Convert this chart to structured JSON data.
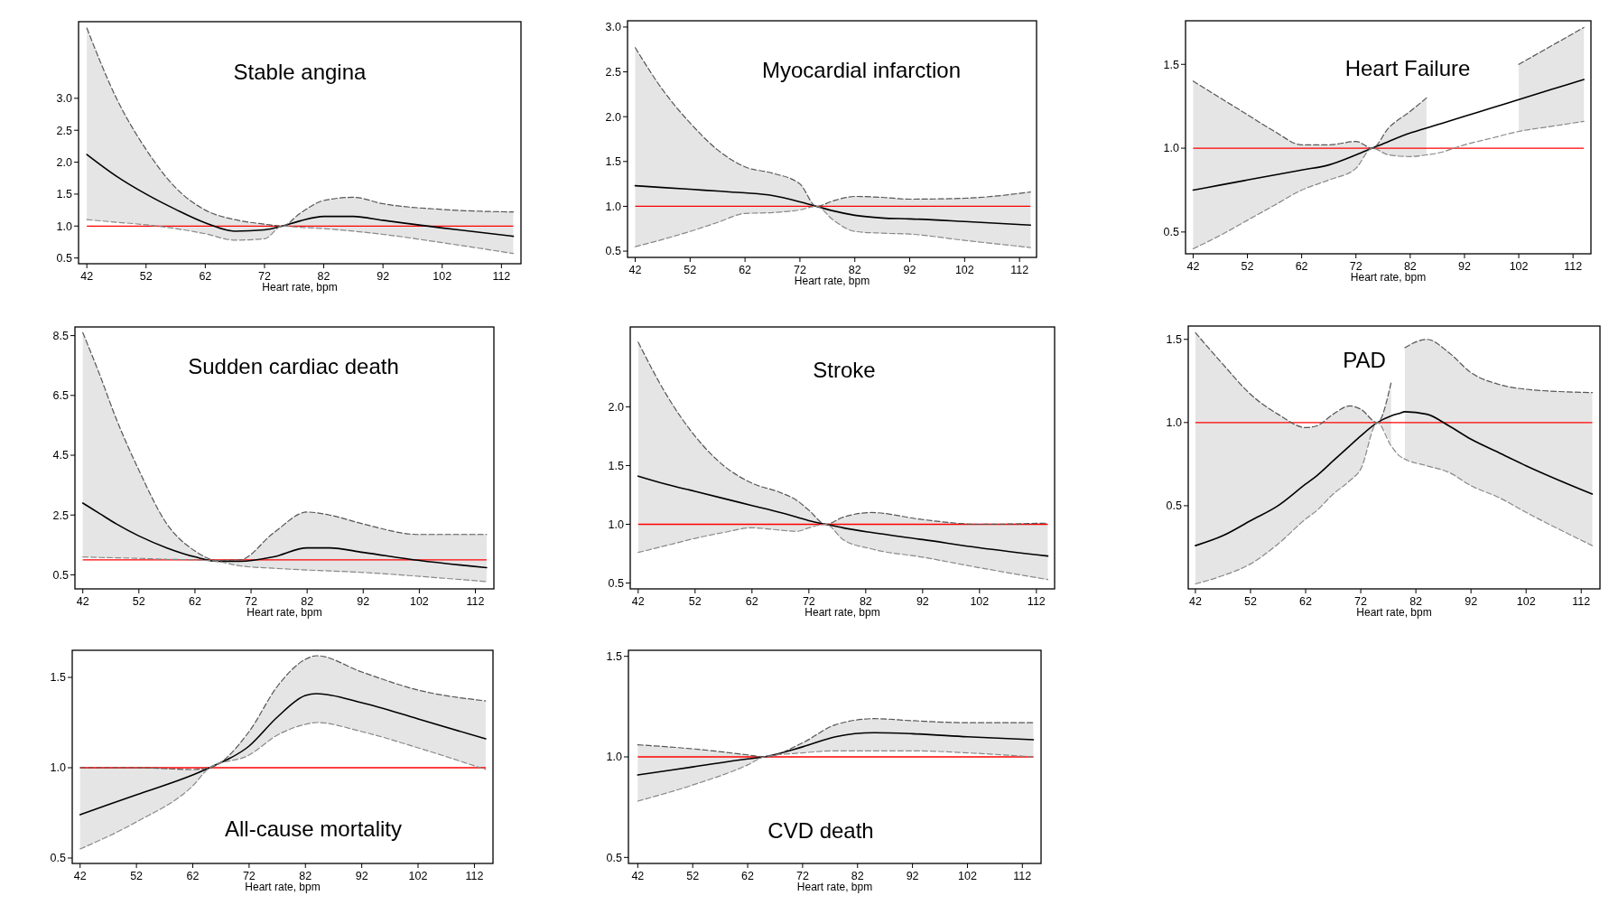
{
  "chart_data": [
    {
      "type": "line",
      "title": "Stable angina",
      "xlabel": "Heart rate, bpm",
      "xlim": [
        40.6,
        115.3
      ],
      "xticks": [
        42,
        52,
        62,
        72,
        82,
        92,
        102,
        112
      ],
      "ylim": [
        0.41,
        4.2
      ],
      "yticks": [
        0.5,
        {
          "value": 1,
          "label": "1.0"
        },
        1.5,
        {
          "value": 2,
          "label": "2.0"
        },
        2.5,
        {
          "value": 3,
          "label": "3.0"
        }
      ],
      "ref_lines": [
        {
          "axis": "y",
          "value": 1,
          "color": "#ff0000"
        }
      ],
      "x": [
        42,
        47,
        52,
        57,
        62,
        67,
        72,
        75,
        78,
        82,
        87,
        92,
        102,
        114
      ],
      "series": [
        {
          "color": "#000000",
          "line_style": "solid",
          "values": [
            2.12,
            1.78,
            1.5,
            1.26,
            1.05,
            0.92,
            0.94,
            1.0,
            1.08,
            1.15,
            1.15,
            1.09,
            0.97,
            0.84
          ],
          "upper": [
            4.1,
            3.0,
            2.2,
            1.6,
            1.25,
            1.1,
            1.03,
            1.0,
            1.2,
            1.4,
            1.45,
            1.35,
            1.26,
            1.22
          ],
          "lower": [
            1.1,
            1.06,
            1.02,
            0.96,
            0.88,
            0.78,
            0.8,
            1.0,
            0.98,
            0.96,
            0.92,
            0.87,
            0.74,
            0.57
          ]
        },
        {
          "color": "#555555",
          "line_style": "dashed",
          "values": [
            4.1,
            3.0,
            2.2,
            1.6,
            1.25,
            1.1,
            1.03,
            1.0,
            1.2,
            1.4,
            1.45,
            1.35,
            1.26,
            1.22
          ]
        },
        {
          "color": "#888888",
          "line_style": "dashed",
          "values": [
            1.1,
            1.06,
            1.02,
            0.96,
            0.88,
            0.78,
            0.8,
            1.0,
            0.98,
            0.96,
            0.92,
            0.87,
            0.74,
            0.57
          ]
        }
      ]
    },
    {
      "type": "line",
      "title": "Myocardial infarction",
      "xlabel": "Heart rate, bpm",
      "xlim": [
        40.6,
        115.1
      ],
      "xticks": [
        42,
        52,
        62,
        72,
        82,
        92,
        102,
        112
      ],
      "ylim": [
        0.43,
        3.07
      ],
      "yticks": [
        0.5,
        {
          "value": 1,
          "label": "1.0"
        },
        1.5,
        {
          "value": 2,
          "label": "2.0"
        },
        2.5,
        {
          "value": 3,
          "label": "3.0"
        }
      ],
      "ref_lines": [
        {
          "axis": "y",
          "value": 1,
          "color": "#ff0000"
        }
      ],
      "x": [
        42,
        47,
        52,
        57,
        62,
        67,
        72,
        75,
        78,
        82,
        87,
        92,
        102,
        114
      ],
      "series": [
        {
          "color": "#000000",
          "line_style": "solid",
          "values": [
            1.23,
            1.21,
            1.19,
            1.17,
            1.15,
            1.12,
            1.05,
            1.0,
            0.95,
            0.9,
            0.87,
            0.86,
            0.83,
            0.79
          ],
          "upper": [
            2.77,
            2.3,
            1.93,
            1.63,
            1.44,
            1.37,
            1.25,
            1.0,
            1.06,
            1.11,
            1.1,
            1.08,
            1.09,
            1.16
          ],
          "lower": [
            0.55,
            0.63,
            0.72,
            0.82,
            0.92,
            0.93,
            0.96,
            1.0,
            0.85,
            0.72,
            0.7,
            0.69,
            0.62,
            0.54
          ]
        },
        {
          "color": "#555555",
          "line_style": "dashed",
          "values": [
            2.77,
            2.3,
            1.93,
            1.63,
            1.44,
            1.37,
            1.25,
            1.0,
            1.06,
            1.11,
            1.1,
            1.08,
            1.09,
            1.16
          ]
        },
        {
          "color": "#888888",
          "line_style": "dashed",
          "values": [
            0.55,
            0.63,
            0.72,
            0.82,
            0.92,
            0.93,
            0.96,
            1.0,
            0.85,
            0.72,
            0.7,
            0.69,
            0.62,
            0.54
          ]
        }
      ]
    },
    {
      "type": "line",
      "title": "Heart Failure",
      "xlabel": "Heart rate, bpm",
      "xlim": [
        40.6,
        115.3
      ],
      "xticks": [
        42,
        52,
        62,
        72,
        82,
        92,
        102,
        112
      ],
      "ylim": [
        0.37,
        1.76
      ],
      "yticks": [
        0.5,
        {
          "value": 1,
          "label": "1.0"
        },
        1.5
      ],
      "ref_lines": [
        {
          "axis": "y",
          "value": 1,
          "color": "#ff0000"
        }
      ],
      "x": [
        42,
        47,
        52,
        57,
        62,
        67,
        72,
        75,
        78,
        82,
        85,
        87,
        92,
        97,
        102,
        108,
        114
      ],
      "series": [
        {
          "color": "#000000",
          "line_style": "solid",
          "values": [
            0.75,
            0.78,
            0.81,
            0.84,
            0.87,
            0.9,
            0.96,
            1.0,
            1.04,
            1.09,
            1.12,
            1.14,
            1.19,
            1.24,
            1.29,
            1.35,
            1.41
          ],
          "upper": [
            1.4,
            1.3,
            1.2,
            1.1,
            1.02,
            1.02,
            1.04,
            1.0,
            1.12,
            1.22,
            1.3,
            null,
            null,
            null,
            1.5,
            1.61,
            1.72
          ],
          "lower": [
            0.4,
            0.48,
            0.57,
            0.66,
            0.75,
            0.81,
            0.88,
            1.0,
            0.96,
            0.95,
            0.96,
            null,
            null,
            null,
            1.1,
            1.13,
            1.16
          ]
        },
        {
          "color": "#555555",
          "line_style": "dashed",
          "values": [
            1.4,
            1.3,
            1.2,
            1.1,
            1.02,
            1.02,
            1.04,
            1.0,
            1.12,
            1.22,
            1.3,
            null,
            null,
            null,
            1.5,
            1.61,
            1.72
          ]
        },
        {
          "color": "#888888",
          "line_style": "dashed",
          "values": [
            0.4,
            0.48,
            0.57,
            0.66,
            0.75,
            0.81,
            0.88,
            1.0,
            0.96,
            0.95,
            0.96,
            0.97,
            1.02,
            1.06,
            1.1,
            1.13,
            1.16
          ]
        }
      ]
    },
    {
      "type": "line",
      "title": "Sudden cardiac death",
      "xlabel": "Heart rate, bpm",
      "xlim": [
        40.6,
        115.3
      ],
      "xticks": [
        42,
        52,
        62,
        72,
        82,
        92,
        102,
        112
      ],
      "ylim": [
        0.03,
        8.79
      ],
      "yticks": [
        0.5,
        2.5,
        4.5,
        6.5,
        8.5
      ],
      "ref_lines": [
        {
          "axis": "y",
          "value": 1,
          "color": "#ff0000"
        }
      ],
      "x": [
        42,
        45,
        48,
        52,
        57,
        62,
        66,
        70,
        76,
        82,
        86,
        92,
        102,
        114
      ],
      "series": [
        {
          "color": "#000000",
          "line_style": "solid",
          "values": [
            2.9,
            2.55,
            2.2,
            1.8,
            1.4,
            1.1,
            0.95,
            0.95,
            1.1,
            1.4,
            1.4,
            1.25,
            0.98,
            0.74
          ],
          "upper": [
            8.6,
            7.2,
            5.7,
            4.0,
            2.2,
            1.3,
            0.98,
            1.0,
            1.9,
            2.6,
            2.5,
            2.2,
            1.85,
            1.85
          ],
          "lower": [
            1.1,
            1.08,
            1.07,
            1.05,
            1.02,
            1.0,
            0.95,
            0.8,
            0.72,
            0.66,
            0.63,
            0.58,
            0.45,
            0.27
          ]
        },
        {
          "color": "#555555",
          "line_style": "dashed",
          "values": [
            8.6,
            7.2,
            5.7,
            4.0,
            2.2,
            1.3,
            0.98,
            1.0,
            1.9,
            2.6,
            2.5,
            2.2,
            1.85,
            1.85
          ]
        },
        {
          "color": "#888888",
          "line_style": "dashed",
          "values": [
            1.1,
            1.08,
            1.07,
            1.05,
            1.02,
            1.0,
            0.95,
            0.8,
            0.72,
            0.66,
            0.63,
            0.58,
            0.45,
            0.27
          ]
        }
      ]
    },
    {
      "type": "line",
      "title": "Stroke",
      "xlabel": "Heart rate, bpm",
      "xlim": [
        40.6,
        115.2
      ],
      "xticks": [
        42,
        52,
        62,
        72,
        82,
        92,
        102,
        112
      ],
      "ylim": [
        0.45,
        2.68
      ],
      "yticks": [
        0.5,
        {
          "value": 1,
          "label": "1.0"
        },
        1.5,
        {
          "value": 2,
          "label": "2.0"
        }
      ],
      "ref_lines": [
        {
          "axis": "y",
          "value": 1,
          "color": "#ff0000"
        }
      ],
      "x": [
        42,
        47,
        52,
        57,
        62,
        67,
        70,
        72,
        75,
        78,
        83,
        92,
        102,
        114
      ],
      "series": [
        {
          "color": "#000000",
          "line_style": "solid",
          "values": [
            1.41,
            1.34,
            1.28,
            1.22,
            1.16,
            1.1,
            1.06,
            1.03,
            1.0,
            0.97,
            0.93,
            0.87,
            0.8,
            0.73
          ],
          "upper": [
            2.55,
            2.1,
            1.75,
            1.5,
            1.35,
            1.27,
            1.2,
            1.12,
            1.0,
            1.06,
            1.1,
            1.04,
            1.0,
            1.01
          ],
          "lower": [
            0.76,
            0.82,
            0.88,
            0.93,
            0.97,
            0.95,
            0.94,
            0.97,
            1.0,
            0.87,
            0.79,
            0.72,
            0.63,
            0.53
          ]
        },
        {
          "color": "#555555",
          "line_style": "dashed",
          "values": [
            2.55,
            2.1,
            1.75,
            1.5,
            1.35,
            1.27,
            1.2,
            1.12,
            1.0,
            1.06,
            1.1,
            1.04,
            1.0,
            1.01
          ]
        },
        {
          "color": "#888888",
          "line_style": "dashed",
          "values": [
            0.76,
            0.82,
            0.88,
            0.93,
            0.97,
            0.95,
            0.94,
            0.97,
            1.0,
            0.87,
            0.79,
            0.72,
            0.63,
            0.53
          ]
        }
      ]
    },
    {
      "type": "line",
      "title": "PAD",
      "xlabel": "Heart rate, bpm",
      "xlim": [
        40.7,
        115.4
      ],
      "xticks": [
        42,
        52,
        62,
        72,
        82,
        92,
        102,
        112
      ],
      "ylim": [
        0.0,
        1.58
      ],
      "yticks": [
        0.5,
        {
          "value": 1,
          "label": "1.0"
        },
        1.5
      ],
      "ref_lines": [
        {
          "axis": "y",
          "value": 1,
          "color": "#ff0000"
        }
      ],
      "x": [
        42,
        47,
        52,
        57,
        62,
        64,
        67,
        70,
        72,
        75,
        77.5,
        79,
        80,
        84,
        88,
        92,
        97,
        102,
        114
      ],
      "series": [
        {
          "color": "#000000",
          "line_style": "solid",
          "values": [
            0.26,
            0.32,
            0.41,
            0.5,
            0.63,
            0.68,
            0.77,
            0.86,
            0.92,
            1.0,
            1.04,
            1.055,
            1.065,
            1.05,
            0.98,
            0.9,
            0.82,
            0.74,
            0.57
          ],
          "upper": [
            1.54,
            1.35,
            1.17,
            1.05,
            0.97,
            0.98,
            1.05,
            1.1,
            1.08,
            1.0,
            1.24,
            null,
            1.45,
            1.5,
            1.42,
            1.3,
            1.23,
            1.2,
            1.18
          ],
          "lower": [
            0.03,
            0.08,
            0.15,
            0.27,
            0.42,
            0.47,
            0.57,
            0.65,
            0.72,
            1.0,
            0.86,
            null,
            0.78,
            0.74,
            0.7,
            0.62,
            0.55,
            0.46,
            0.26
          ]
        },
        {
          "color": "#555555",
          "line_style": "dashed",
          "values": [
            1.54,
            1.35,
            1.17,
            1.05,
            0.97,
            0.98,
            1.05,
            1.1,
            1.08,
            1.0,
            1.24,
            null,
            1.45,
            1.5,
            1.42,
            1.3,
            1.23,
            1.2,
            1.18
          ]
        },
        {
          "color": "#888888",
          "line_style": "dashed",
          "values": [
            0.03,
            0.08,
            0.15,
            0.27,
            0.42,
            0.47,
            0.57,
            0.65,
            0.72,
            1.0,
            0.86,
            0.8,
            0.78,
            0.74,
            0.7,
            0.62,
            0.55,
            0.46,
            0.26
          ]
        }
      ]
    },
    {
      "type": "line",
      "title": "All-cause mortality",
      "xlabel": "Heart rate, bpm",
      "xlim": [
        40.6,
        115.3
      ],
      "xticks": [
        42,
        52,
        62,
        72,
        82,
        92,
        102,
        112
      ],
      "ylim": [
        0.47,
        1.65
      ],
      "yticks": [
        0.5,
        {
          "value": 1,
          "label": "1.0"
        },
        1.5
      ],
      "ref_lines": [
        {
          "axis": "y",
          "value": 1,
          "color": "#ff0000"
        }
      ],
      "x": [
        42,
        52,
        62,
        65,
        72,
        77,
        82,
        84,
        92,
        102,
        114
      ],
      "series": [
        {
          "color": "#000000",
          "line_style": "solid",
          "values": [
            0.74,
            0.85,
            0.96,
            1.0,
            1.12,
            1.28,
            1.4,
            1.41,
            1.36,
            1.27,
            1.16
          ],
          "upper": [
            1.0,
            1.0,
            0.99,
            1.0,
            1.2,
            1.45,
            1.6,
            1.62,
            1.53,
            1.43,
            1.37
          ],
          "lower": [
            0.55,
            0.7,
            0.9,
            1.0,
            1.07,
            1.18,
            1.24,
            1.25,
            1.2,
            1.11,
            0.99
          ]
        },
        {
          "color": "#555555",
          "line_style": "dashed",
          "values": [
            1.0,
            1.0,
            0.99,
            1.0,
            1.2,
            1.45,
            1.6,
            1.62,
            1.53,
            1.43,
            1.37
          ]
        },
        {
          "color": "#888888",
          "line_style": "dashed",
          "values": [
            0.55,
            0.7,
            0.9,
            1.0,
            1.07,
            1.18,
            1.24,
            1.25,
            1.2,
            1.11,
            0.99
          ]
        }
      ]
    },
    {
      "type": "line",
      "title": "CVD death",
      "xlabel": "Heart rate, bpm",
      "xlim": [
        40.3,
        115.4
      ],
      "xticks": [
        42,
        52,
        62,
        72,
        82,
        92,
        102,
        112
      ],
      "ylim": [
        0.47,
        1.53
      ],
      "yticks": [
        0.5,
        {
          "value": 1,
          "label": "1.0"
        },
        1.5
      ],
      "ref_lines": [
        {
          "axis": "y",
          "value": 1,
          "color": "#ff0000"
        }
      ],
      "x": [
        42,
        52,
        62,
        65,
        72,
        78,
        85,
        92,
        102,
        114
      ],
      "series": [
        {
          "color": "#000000",
          "line_style": "solid",
          "values": [
            0.91,
            0.95,
            0.99,
            1.0,
            1.05,
            1.1,
            1.12,
            1.115,
            1.1,
            1.085
          ],
          "upper": [
            1.06,
            1.04,
            1.01,
            1.0,
            1.07,
            1.16,
            1.19,
            1.18,
            1.17,
            1.17
          ],
          "lower": [
            0.78,
            0.86,
            0.96,
            1.0,
            1.02,
            1.03,
            1.03,
            1.03,
            1.02,
            1.0
          ]
        },
        {
          "color": "#555555",
          "line_style": "dashed",
          "values": [
            1.06,
            1.04,
            1.01,
            1.0,
            1.07,
            1.16,
            1.19,
            1.18,
            1.17,
            1.17
          ]
        },
        {
          "color": "#888888",
          "line_style": "dashed",
          "values": [
            0.78,
            0.86,
            0.96,
            1.0,
            1.02,
            1.03,
            1.03,
            1.03,
            1.02,
            1.0
          ]
        }
      ]
    }
  ]
}
